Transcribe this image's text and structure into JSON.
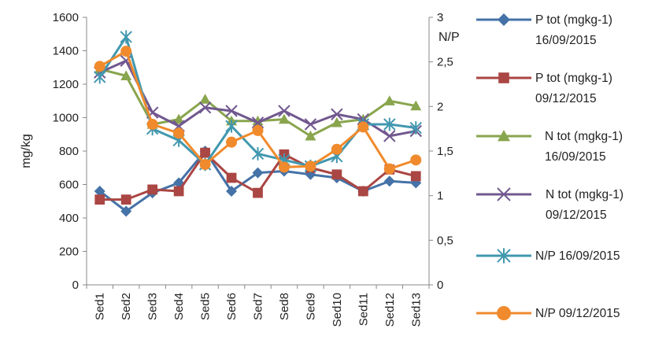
{
  "chart_data": {
    "type": "line",
    "categories": [
      "Sed1",
      "Sed2",
      "Sed3",
      "Sed4",
      "Sed5",
      "Sed6",
      "Sed7",
      "Sed8",
      "Sed9",
      "Sed10",
      "Sed11",
      "Sed12",
      "Sed13"
    ],
    "y_left": {
      "label": "mg/kg",
      "range": [
        0,
        1600
      ],
      "ticks": [
        "0",
        "200",
        "400",
        "600",
        "800",
        "1000",
        "1200",
        "1400",
        "1600"
      ]
    },
    "y_right": {
      "label": "N/P",
      "range": [
        0,
        3
      ],
      "ticks": [
        "0",
        "0,5",
        "1",
        "1,5",
        "2",
        "2,5",
        "3"
      ]
    },
    "grid": false,
    "legend_position": "right",
    "series": [
      {
        "name_lines": [
          "P tot (mgkg-1)",
          "16/09/2015"
        ],
        "axis": "left",
        "color": "#4572a7",
        "marker": "diamond",
        "values": [
          560,
          440,
          550,
          610,
          800,
          560,
          670,
          680,
          660,
          640,
          560,
          620,
          610
        ]
      },
      {
        "name_lines": [
          "P tot (mgkg-1)",
          "09/12/2015"
        ],
        "axis": "left",
        "color": "#aa4643",
        "marker": "square",
        "values": [
          510,
          510,
          570,
          560,
          790,
          640,
          550,
          780,
          700,
          660,
          560,
          690,
          650
        ]
      },
      {
        "name_lines": [
          "N tot (mgkg-1)",
          "16/09/2015"
        ],
        "axis": "left",
        "color": "#89a54e",
        "marker": "triangle",
        "values": [
          1290,
          1250,
          960,
          990,
          1110,
          980,
          980,
          990,
          890,
          970,
          990,
          1100,
          1070
        ]
      },
      {
        "name_lines": [
          "N tot (mgkg-1)",
          "09/12/2015"
        ],
        "axis": "left",
        "color": "#71588f",
        "marker": "x",
        "values": [
          1270,
          1340,
          1030,
          950,
          1060,
          1040,
          970,
          1040,
          960,
          1020,
          990,
          890,
          920
        ]
      },
      {
        "name_lines": [
          "N/P 16/09/2015"
        ],
        "axis": "right",
        "color": "#4198af",
        "marker": "star",
        "values": [
          2.33,
          2.78,
          1.75,
          1.62,
          1.35,
          1.78,
          1.47,
          1.4,
          1.33,
          1.44,
          1.8,
          1.8,
          1.76
        ]
      },
      {
        "name_lines": [
          "N/P 09/12/2015"
        ],
        "axis": "right",
        "color": "#f08a2c",
        "marker": "circle",
        "values": [
          2.45,
          2.62,
          1.8,
          1.7,
          1.35,
          1.6,
          1.73,
          1.32,
          1.33,
          1.52,
          1.77,
          1.3,
          1.4
        ]
      }
    ]
  }
}
